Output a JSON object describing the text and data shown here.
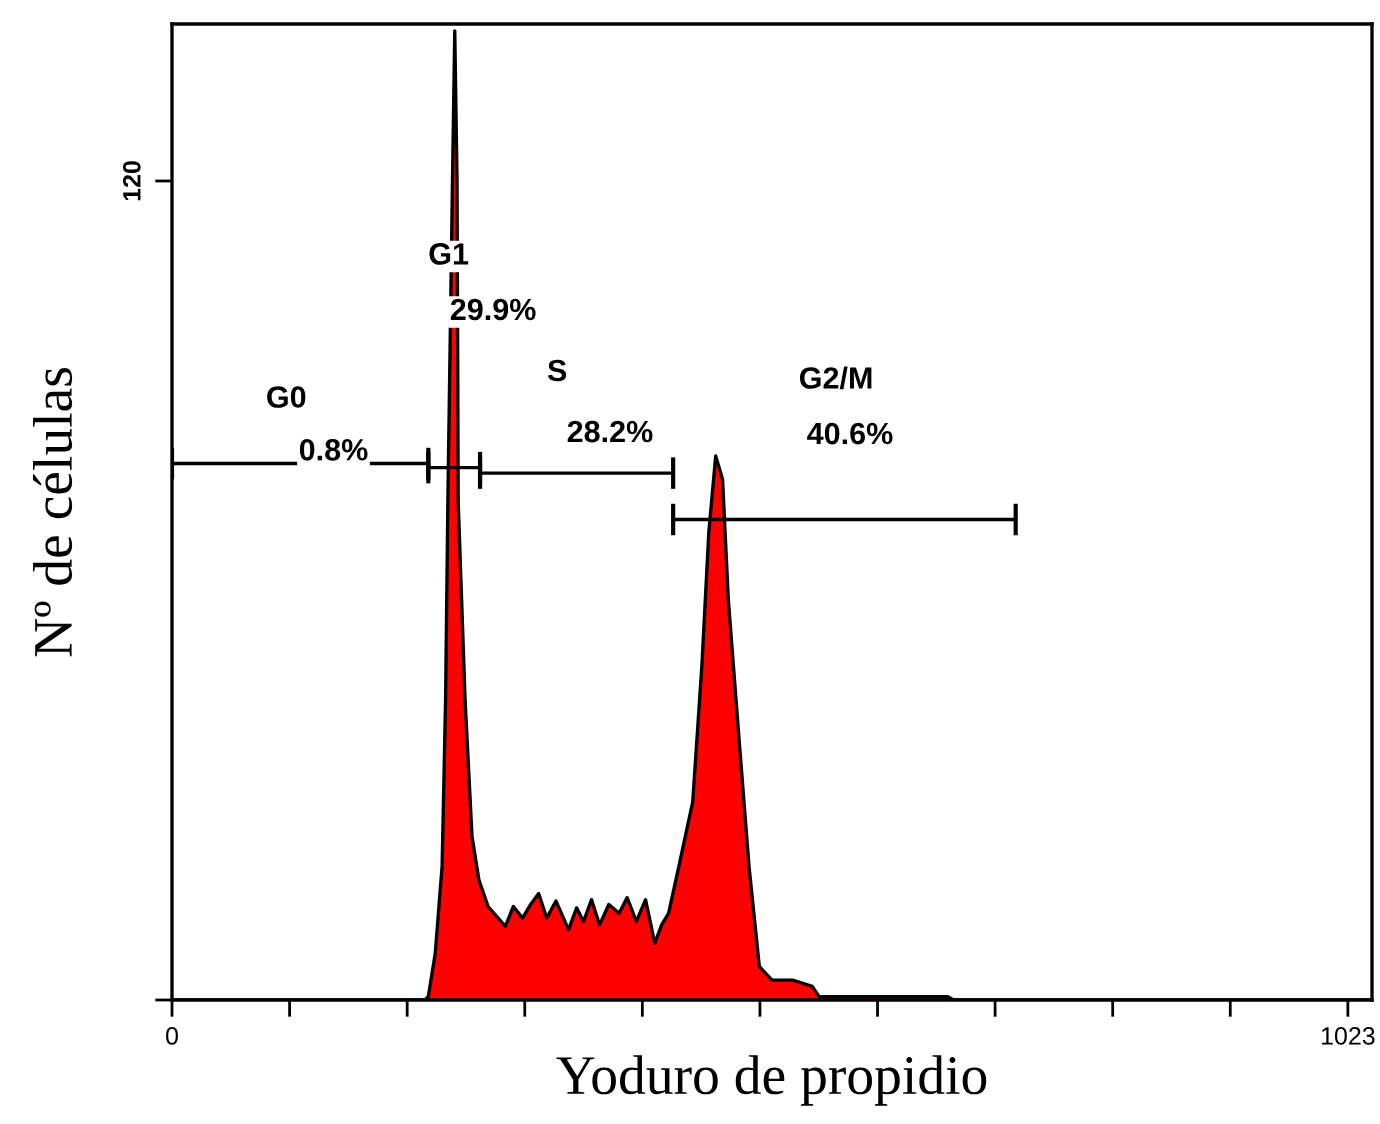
{
  "chart_data": {
    "type": "area",
    "xlabel": "Yoduro de propidio",
    "ylabel": "Nº de células",
    "xlim": [
      0,
      1044
    ],
    "ylim": [
      0,
      143
    ],
    "xticks": [
      0,
      {
        "value": 102.3,
        "label": null
      },
      {
        "value": 204.6,
        "label": null
      },
      {
        "value": 306.9,
        "label": null
      },
      {
        "value": 409.2,
        "label": null
      },
      {
        "value": 511.5,
        "label": null
      },
      {
        "value": 613.8,
        "label": null
      },
      {
        "value": 716.1,
        "label": null
      },
      {
        "value": 818.4,
        "label": null
      },
      {
        "value": 920.7,
        "label": null
      },
      1023
    ],
    "yticks": [
      {
        "value": 0,
        "label": null
      },
      120
    ],
    "grid": false,
    "series": [
      {
        "color": "#ff0000",
        "x": [
          0,
          220,
          223,
          229,
          235,
          238,
          240,
          244,
          246,
          248,
          249,
          255,
          261,
          267,
          275,
          290,
          297,
          305,
          312,
          319,
          326,
          334,
          345,
          352,
          358,
          365,
          372,
          380,
          389,
          396,
          404,
          412,
          420,
          426,
          432,
          441,
          453,
          461,
          467,
          473,
          479,
          484,
          493,
          502,
          511,
          522,
          540,
          557,
          563,
          600,
          640,
          675,
          680,
          1044
        ],
        "values": [
          0,
          0,
          0.5,
          6.8,
          19.6,
          44,
          73,
          120,
          142,
          120,
          73,
          44,
          24,
          17.6,
          13.7,
          10.8,
          13.7,
          12,
          14,
          15.6,
          12,
          14.5,
          10.3,
          13.5,
          11.5,
          14.7,
          11,
          14,
          12.7,
          15,
          11.5,
          14.7,
          8.3,
          11,
          12.7,
          19.6,
          29,
          49,
          68.5,
          79.7,
          76.3,
          58.7,
          39,
          19.6,
          4.9,
          2.9,
          2.9,
          2,
          0.5,
          0.5,
          0.5,
          0.5,
          0,
          0
        ]
      },
      {
        "type": "line",
        "color": "#000000",
        "x": [
          0,
          223
        ],
        "values": [
          78.6,
          78.6
        ]
      },
      {
        "type": "line",
        "color": "#000000",
        "x": [
          223,
          268
        ],
        "values": [
          78.0,
          78.0
        ]
      },
      {
        "type": "line",
        "color": "#000000",
        "x": [
          268,
          436
        ],
        "values": [
          77.2,
          77.2
        ]
      },
      {
        "type": "line",
        "color": "#000000",
        "x": [
          436,
          734
        ],
        "values": [
          70.4,
          70.4
        ]
      }
    ],
    "annotations": [
      "G0",
      "0.8%",
      "G1",
      "29.9%",
      "S",
      "28.2%",
      "G2/M",
      "40.6%"
    ]
  }
}
